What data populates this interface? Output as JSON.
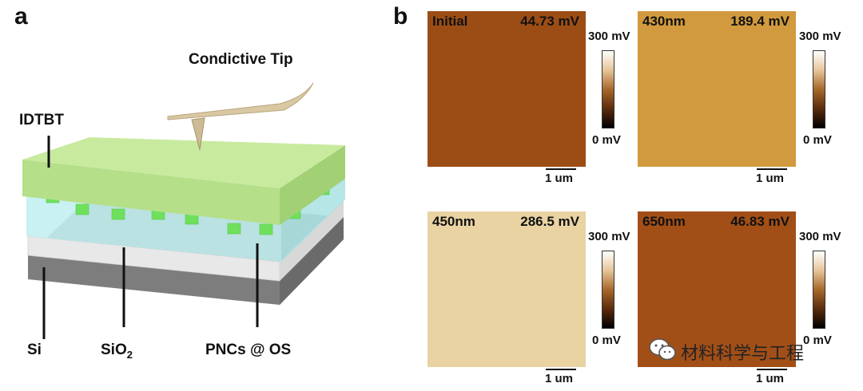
{
  "panel_a": {
    "letter": "a",
    "labels": {
      "tip": "Condictive Tip",
      "idtbt": "IDTBT",
      "si": "Si",
      "sio2_base": "SiO",
      "sio2_sub": "2",
      "pncs": "PNCs @ OS"
    },
    "colors": {
      "idtbt": "#b7e08a",
      "pncs_layer": "#c8efee",
      "sio2": "#e5e5e5",
      "si": "#8a8a8a",
      "cube": "#6fe05c",
      "tip": "#d9c8a2"
    }
  },
  "panel_b": {
    "letter": "b",
    "scale_bar_label": "1 um",
    "colorbar": {
      "max": "300 mV",
      "min": "0 mV"
    },
    "images": [
      {
        "name": "Initial",
        "potential": "44.73 mV",
        "color": "#9c4d16"
      },
      {
        "name": "430nm",
        "potential": "189.4 mV",
        "color": "#d19a3e"
      },
      {
        "name": "450nm",
        "potential": "286.5 mV",
        "color": "#e9d3a3"
      },
      {
        "name": "650nm",
        "potential": "46.83 mV",
        "color": "#a24f17"
      }
    ]
  },
  "watermark": {
    "text": "材料科学与工程",
    "icon": "wechat-icon"
  }
}
